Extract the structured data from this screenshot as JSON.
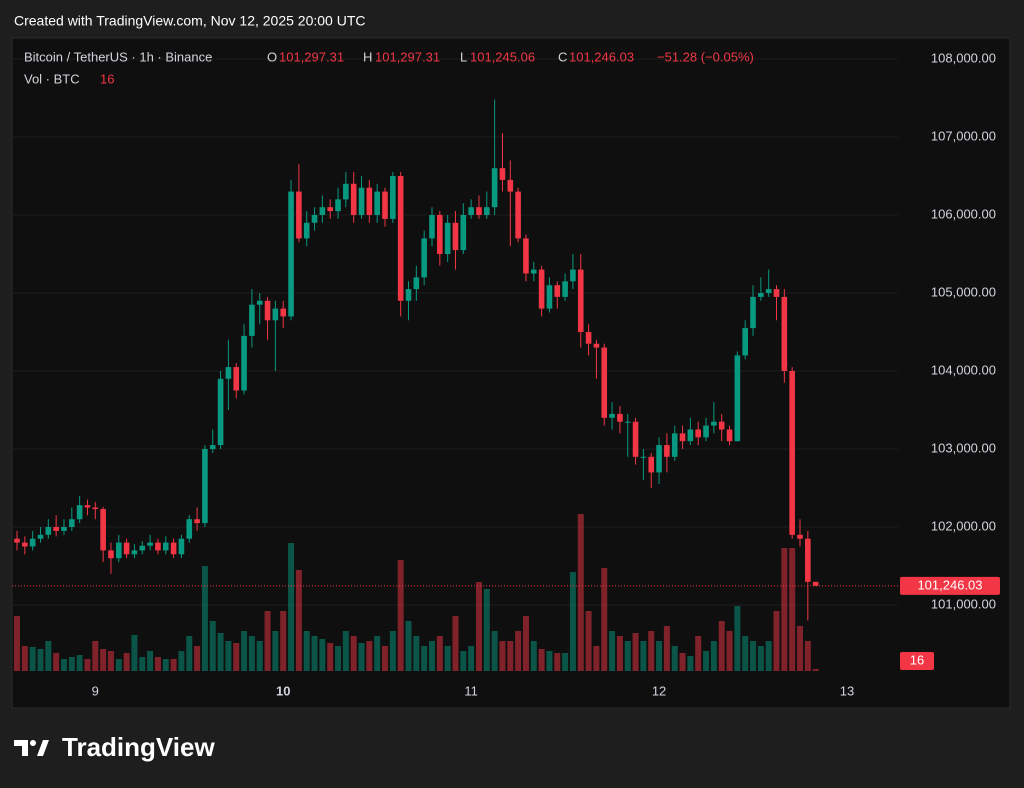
{
  "watermark": "Created with TradingView.com, Nov 12, 2025 20:00 UTC",
  "brand": "TradingView",
  "chart_data": {
    "type": "candlestick",
    "title": "Bitcoin / TetherUS · 1h · Binance",
    "legend": {
      "o_label": "O",
      "open": "101,297.31",
      "h_label": "H",
      "high": "101,297.31",
      "l_label": "L",
      "low": "101,245.06",
      "c_label": "C",
      "close": "101,246.03",
      "change": "−51.28 (−0.05%)",
      "volume_label": "Vol · BTC"
    },
    "up_color": "#089981",
    "down_color": "#f23645",
    "categories": [
      null,
      null,
      null,
      null,
      null,
      null,
      null,
      null,
      null,
      null,
      "9",
      null,
      null,
      null,
      null,
      null,
      null,
      null,
      null,
      null,
      null,
      null,
      null,
      null,
      null,
      null,
      null,
      null,
      null,
      null,
      null,
      null,
      null,
      null,
      "10",
      null,
      null,
      null,
      null,
      null,
      null,
      null,
      null,
      null,
      null,
      null,
      null,
      null,
      null,
      null,
      null,
      null,
      null,
      null,
      null,
      null,
      null,
      null,
      "11",
      null,
      null,
      null,
      null,
      null,
      null,
      null,
      null,
      null,
      null,
      null,
      null,
      null,
      null,
      null,
      null,
      null,
      null,
      null,
      null,
      null,
      null,
      null,
      "12",
      null,
      null,
      null,
      null,
      null,
      null,
      null,
      null,
      null,
      null,
      null,
      null,
      null,
      null,
      null,
      null,
      null,
      null,
      null,
      null,
      null,
      null,
      null,
      "13"
    ],
    "open": [
      101850,
      101800,
      101750,
      101850,
      101900,
      102000,
      101950,
      102000,
      102100,
      102280,
      102250,
      102230,
      101700,
      101600,
      101800,
      101650,
      101700,
      101760,
      101800,
      101700,
      101800,
      101650,
      101850,
      102100,
      102050,
      103000,
      103050,
      103900,
      104050,
      103750,
      104450,
      104850,
      104900,
      104650,
      104800,
      104700,
      106300,
      105700,
      105900,
      106000,
      106100,
      106050,
      106200,
      106400,
      106000,
      106350,
      106000,
      106300,
      105950,
      106500,
      104900,
      105050,
      105200,
      105700,
      106000,
      105500,
      105900,
      105550,
      106000,
      106100,
      106000,
      106100,
      106600,
      106450,
      106300,
      105700,
      105250,
      105300,
      104800,
      105100,
      104950,
      105150,
      105300,
      104500,
      104350,
      104300,
      103400,
      103450,
      103350,
      103350,
      102900,
      102900,
      102700,
      103050,
      102900,
      103200,
      103100,
      103250,
      103150,
      103300,
      103350,
      103250,
      103100,
      104200,
      104550,
      104950,
      105000,
      105050,
      104950,
      104000,
      101900,
      101850,
      101297.31,
      null,
      null,
      null,
      null
    ],
    "high": [
      101950,
      101880,
      101950,
      102000,
      102100,
      102150,
      102100,
      102250,
      102400,
      102350,
      102320,
      102260,
      101800,
      101900,
      101850,
      101780,
      101820,
      101900,
      101850,
      101880,
      101850,
      101900,
      102150,
      102250,
      103050,
      103250,
      104000,
      104400,
      104100,
      104600,
      105050,
      105000,
      104950,
      104900,
      104900,
      106450,
      106650,
      106050,
      106100,
      106250,
      106200,
      106350,
      106550,
      106550,
      106500,
      106450,
      106400,
      106350,
      106550,
      106550,
      105150,
      105350,
      105800,
      106100,
      106050,
      106000,
      106050,
      106150,
      106200,
      106250,
      106300,
      107480,
      107050,
      106700,
      106350,
      105750,
      105400,
      105350,
      105200,
      105150,
      105250,
      105500,
      105500,
      104600,
      104400,
      104350,
      103600,
      103550,
      103450,
      103400,
      103000,
      102950,
      103150,
      103200,
      103300,
      103300,
      103400,
      103350,
      103400,
      103600,
      103450,
      103300,
      104250,
      104650,
      105100,
      105200,
      105300,
      105100,
      105050,
      104050,
      102100,
      101950,
      101297.31,
      null,
      null,
      null,
      null
    ],
    "low": [
      101700,
      101650,
      101700,
      101800,
      101850,
      101880,
      101900,
      101950,
      102050,
      102150,
      102100,
      101550,
      101400,
      101550,
      101600,
      101600,
      101650,
      101700,
      101650,
      101650,
      101600,
      101600,
      101800,
      101950,
      102000,
      102950,
      103000,
      103500,
      103650,
      103700,
      104300,
      104600,
      104400,
      104000,
      104550,
      104650,
      105650,
      105600,
      105800,
      105900,
      105950,
      105950,
      106100,
      105900,
      105950,
      105900,
      105900,
      105850,
      105900,
      104700,
      104650,
      104900,
      105100,
      105600,
      105350,
      105400,
      105300,
      105500,
      105950,
      105950,
      105950,
      106000,
      106300,
      105600,
      105650,
      105150,
      105150,
      104700,
      104750,
      104800,
      104900,
      105050,
      104300,
      104200,
      103900,
      103300,
      103250,
      103200,
      102900,
      102800,
      102600,
      102500,
      102550,
      102700,
      102850,
      103000,
      103050,
      103050,
      103100,
      103200,
      103100,
      103050,
      103100,
      104150,
      104450,
      104900,
      104950,
      104650,
      103850,
      101850,
      101750,
      100800,
      101245.06,
      null,
      null,
      null,
      null
    ],
    "close": [
      101800,
      101750,
      101850,
      101900,
      102000,
      101950,
      102000,
      102100,
      102280,
      102250,
      102230,
      101700,
      101600,
      101800,
      101650,
      101700,
      101760,
      101800,
      101700,
      101800,
      101650,
      101850,
      102100,
      102050,
      103000,
      103050,
      103900,
      104050,
      103750,
      104450,
      104850,
      104900,
      104650,
      104800,
      104700,
      106300,
      105700,
      105900,
      106000,
      106100,
      106050,
      106200,
      106400,
      106000,
      106350,
      106000,
      106300,
      105950,
      106500,
      104900,
      105050,
      105200,
      105700,
      106000,
      105500,
      105900,
      105550,
      106000,
      106100,
      106000,
      106100,
      106600,
      106450,
      106300,
      105700,
      105250,
      105300,
      104800,
      105100,
      104950,
      105150,
      105300,
      104500,
      104350,
      104300,
      103400,
      103450,
      103350,
      103350,
      102900,
      102900,
      102700,
      103050,
      102900,
      103200,
      103100,
      103250,
      103150,
      103300,
      103350,
      103250,
      103100,
      104200,
      104550,
      104950,
      105000,
      105050,
      104950,
      104000,
      101900,
      101850,
      101297.31,
      101246.03,
      null,
      null,
      null,
      null
    ],
    "volume": [
      440,
      200,
      192,
      176,
      240,
      144,
      96,
      112,
      128,
      96,
      240,
      176,
      160,
      96,
      144,
      288,
      112,
      160,
      112,
      96,
      96,
      160,
      280,
      200,
      840,
      400,
      304,
      240,
      224,
      320,
      280,
      240,
      480,
      320,
      480,
      1024,
      808,
      320,
      280,
      256,
      224,
      200,
      320,
      280,
      224,
      240,
      280,
      200,
      320,
      888,
      400,
      280,
      200,
      240,
      280,
      200,
      440,
      160,
      200,
      712,
      656,
      320,
      240,
      240,
      320,
      440,
      240,
      176,
      160,
      144,
      144,
      792,
      1256,
      480,
      200,
      824,
      320,
      280,
      240,
      304,
      240,
      320,
      240,
      360,
      200,
      144,
      120,
      280,
      160,
      240,
      400,
      320,
      520,
      280,
      240,
      200,
      240,
      480,
      984,
      984,
      360,
      240,
      16,
      null,
      null,
      null,
      null
    ],
    "ylim": [
      100154,
      108269
    ],
    "yticks": [
      {
        "value": 101000,
        "label": "101,000.00"
      },
      {
        "value": 102000,
        "label": "102,000.00"
      },
      {
        "value": 103000,
        "label": "103,000.00"
      },
      {
        "value": 104000,
        "label": "104,000.00"
      },
      {
        "value": 105000,
        "label": "105,000.00"
      },
      {
        "value": 106000,
        "label": "106,000.00"
      },
      {
        "value": 107000,
        "label": "107,000.00"
      },
      {
        "value": 108000,
        "label": "108,000.00"
      }
    ],
    "grid": true
  }
}
